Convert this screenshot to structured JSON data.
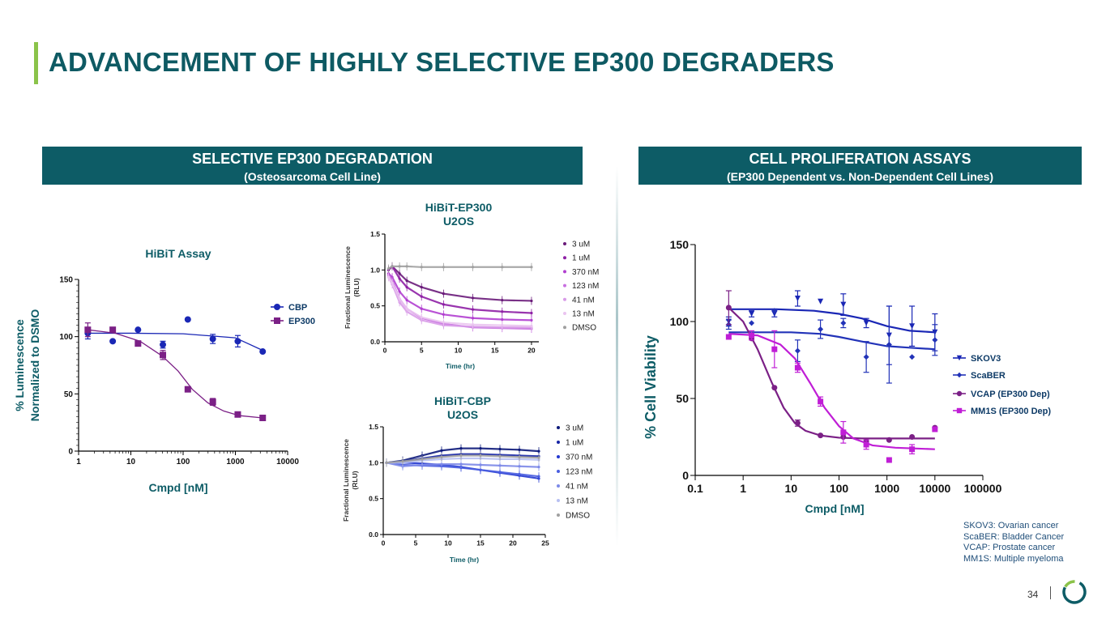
{
  "slide": {
    "title": "ADVANCEMENT OF HIGHLY SELECTIVE EP300 DEGRADERS",
    "page_number": "34"
  },
  "left_panel": {
    "heading": "SELECTIVE EP300 DEGRADATION",
    "subheading": "(Osteosarcoma Cell Line)"
  },
  "right_panel": {
    "heading": "CELL PROLIFERATION ASSAYS",
    "subheading": "(EP300 Dependent  vs. Non-Dependent Cell Lines)"
  },
  "footnotes": [
    "SKOV3: Ovarian cancer",
    "ScaBER: Bladder Cancer",
    "VCAP: Prostate cancer",
    "MM1S: Multiple myeloma"
  ],
  "colors": {
    "teal": "#0d5c66",
    "accent_green": "#8bc34a",
    "cbp_blue": "#1a27b5",
    "ep300_purple": "#7b2086"
  },
  "chart_data": [
    {
      "id": "hibit_assay",
      "type": "scatter",
      "title": "HiBiT Assay",
      "xlabel": "Cmpd [nM]",
      "ylabel": [
        "% Luminescence",
        "Normalized to DSMO"
      ],
      "xscale": "log",
      "xlim": [
        1,
        10000
      ],
      "ylim": [
        0,
        150
      ],
      "xticks": [
        1,
        10,
        100,
        1000,
        10000
      ],
      "xtick_labels": [
        "1",
        "10",
        "100",
        "1000",
        "10000"
      ],
      "yticks": [
        0,
        50,
        100,
        150
      ],
      "ytick_labels": [
        "0",
        "50",
        "100",
        "150"
      ],
      "legend_position": "right",
      "series": [
        {
          "name": "CBP",
          "marker": "circle",
          "color": "#1a27b5",
          "x": [
            1.5,
            4.5,
            13.7,
            41,
            123,
            370,
            1111,
            3333
          ],
          "y": [
            103,
            96,
            106,
            93,
            115,
            98,
            96,
            87
          ],
          "err": [
            5,
            0,
            0,
            3,
            0,
            4,
            5,
            0
          ],
          "fit_x": [
            1.5,
            10,
            100,
            1000,
            3333
          ],
          "fit_y": [
            103,
            103,
            102.5,
            99,
            88
          ]
        },
        {
          "name": "EP300",
          "marker": "square",
          "color": "#7b2086",
          "x": [
            1.5,
            4.5,
            13.7,
            41,
            123,
            370,
            1111,
            3333
          ],
          "y": [
            106,
            106,
            94,
            84,
            54,
            43,
            32,
            29
          ],
          "err": [
            6,
            0,
            0,
            4,
            0,
            3,
            0,
            0
          ],
          "fit_x": [
            1.5,
            5,
            15,
            40,
            80,
            150,
            300,
            600,
            1200,
            3333
          ],
          "fit_y": [
            106,
            103,
            96,
            83,
            70,
            54,
            42,
            35,
            31,
            29
          ]
        }
      ]
    },
    {
      "id": "hibit_ep300_u2os",
      "type": "line",
      "title": [
        "HiBiT-EP300",
        "U2OS"
      ],
      "xlabel": "Time (hr)",
      "ylabel": [
        "Fractional  Luminescence",
        "(RLU)"
      ],
      "xlim": [
        0,
        21
      ],
      "ylim": [
        0,
        1.5
      ],
      "xticks": [
        0,
        5,
        10,
        15,
        20
      ],
      "xtick_labels": [
        "0",
        "5",
        "10",
        "15",
        "20"
      ],
      "yticks": [
        0,
        0.5,
        1.0,
        1.5
      ],
      "ytick_labels": [
        "0.0",
        "0.5",
        "1.0",
        "1.5"
      ],
      "legend_position": "right",
      "series": [
        {
          "name": "3 uM",
          "color": "#6a1b7a",
          "x": [
            0.5,
            1,
            2,
            3,
            5,
            8,
            12,
            16,
            20
          ],
          "y": [
            1.0,
            1.05,
            0.95,
            0.85,
            0.76,
            0.67,
            0.61,
            0.58,
            0.57
          ]
        },
        {
          "name": "1 uM",
          "color": "#8e1fa5",
          "x": [
            0.5,
            1,
            2,
            3,
            5,
            8,
            12,
            16,
            20
          ],
          "y": [
            1.0,
            1.05,
            0.88,
            0.76,
            0.63,
            0.52,
            0.45,
            0.42,
            0.4
          ]
        },
        {
          "name": "370 nM",
          "color": "#b13fd0",
          "x": [
            0.5,
            1,
            2,
            3,
            5,
            8,
            12,
            16,
            20
          ],
          "y": [
            0.95,
            0.9,
            0.7,
            0.58,
            0.46,
            0.38,
            0.33,
            0.31,
            0.3
          ]
        },
        {
          "name": "123 nM",
          "color": "#c870e0",
          "x": [
            0.5,
            1,
            2,
            3,
            5,
            8,
            12,
            16,
            20
          ],
          "y": [
            0.92,
            0.85,
            0.6,
            0.46,
            0.33,
            0.25,
            0.2,
            0.19,
            0.18
          ]
        },
        {
          "name": "41 nM",
          "color": "#d89be8",
          "x": [
            0.5,
            1,
            2,
            3,
            5,
            8,
            12,
            16,
            20
          ],
          "y": [
            0.9,
            0.8,
            0.55,
            0.42,
            0.3,
            0.23,
            0.21,
            0.2,
            0.2
          ]
        },
        {
          "name": "13 nM",
          "color": "#eac4f0",
          "x": [
            0.5,
            1,
            2,
            3,
            5,
            8,
            12,
            16,
            20
          ],
          "y": [
            0.9,
            0.82,
            0.6,
            0.46,
            0.34,
            0.27,
            0.24,
            0.23,
            0.22
          ]
        },
        {
          "name": "DMSO",
          "color": "#a0a0a0",
          "x": [
            0.5,
            1,
            2,
            3,
            5,
            8,
            12,
            16,
            20
          ],
          "y": [
            1.02,
            1.05,
            1.05,
            1.05,
            1.04,
            1.04,
            1.04,
            1.04,
            1.04
          ]
        }
      ]
    },
    {
      "id": "hibit_cbp_u2os",
      "type": "line",
      "title": [
        "HiBiT-CBP",
        "U2OS"
      ],
      "xlabel": "Time (hr)",
      "ylabel": [
        "Fractional  Luminescence",
        "(RLU)"
      ],
      "xlim": [
        0,
        25
      ],
      "ylim": [
        0,
        1.5
      ],
      "xticks": [
        0,
        5,
        10,
        15,
        20,
        25
      ],
      "xtick_labels": [
        "0",
        "5",
        "10",
        "15",
        "20",
        "25"
      ],
      "yticks": [
        0,
        0.5,
        1.0,
        1.5
      ],
      "ytick_labels": [
        "0.0",
        "0.5",
        "1.0",
        "1.5"
      ],
      "legend_position": "right",
      "series": [
        {
          "name": "3 uM",
          "color": "#0d1a7a",
          "x": [
            0.5,
            3,
            6,
            9,
            12,
            15,
            18,
            21,
            24
          ],
          "y": [
            1.0,
            1.03,
            1.1,
            1.17,
            1.2,
            1.2,
            1.19,
            1.18,
            1.16
          ]
        },
        {
          "name": "1 uM",
          "color": "#1625a6",
          "x": [
            0.5,
            3,
            6,
            9,
            12,
            15,
            18,
            21,
            24
          ],
          "y": [
            1.0,
            1.02,
            1.06,
            1.1,
            1.12,
            1.12,
            1.11,
            1.1,
            1.09
          ]
        },
        {
          "name": "370 nM",
          "color": "#2438d0",
          "x": [
            0.5,
            3,
            6,
            9,
            12,
            15,
            18,
            21,
            24
          ],
          "y": [
            1.0,
            1.0,
            0.99,
            0.97,
            0.94,
            0.9,
            0.86,
            0.82,
            0.78
          ]
        },
        {
          "name": "123 nM",
          "color": "#4a5ee0",
          "x": [
            0.5,
            3,
            6,
            9,
            12,
            15,
            18,
            21,
            24
          ],
          "y": [
            1.0,
            0.97,
            0.96,
            0.95,
            0.93,
            0.9,
            0.87,
            0.84,
            0.81
          ]
        },
        {
          "name": "41 nM",
          "color": "#7d8ae8",
          "x": [
            0.5,
            3,
            6,
            9,
            12,
            15,
            18,
            21,
            24
          ],
          "y": [
            1.0,
            0.95,
            0.97,
            0.98,
            0.98,
            0.97,
            0.96,
            0.95,
            0.94
          ]
        },
        {
          "name": "13 nM",
          "color": "#b7c0f2",
          "x": [
            0.5,
            3,
            6,
            9,
            12,
            15,
            18,
            21,
            24
          ],
          "y": [
            1.0,
            1.0,
            1.03,
            1.05,
            1.06,
            1.06,
            1.05,
            1.05,
            1.04
          ]
        },
        {
          "name": "DMSO",
          "color": "#a0a0a0",
          "x": [
            0.5,
            3,
            6,
            9,
            12,
            15,
            18,
            21,
            24
          ],
          "y": [
            1.0,
            1.02,
            1.05,
            1.08,
            1.1,
            1.1,
            1.09,
            1.08,
            1.07
          ]
        }
      ]
    },
    {
      "id": "cell_viability",
      "type": "scatter",
      "xlabel": "Cmpd [nM]",
      "ylabel": "% Cell Viability",
      "xscale": "log",
      "xlim": [
        0.1,
        100000
      ],
      "ylim": [
        0,
        150
      ],
      "xticks": [
        0.1,
        1,
        10,
        100,
        1000,
        10000,
        100000
      ],
      "xtick_labels": [
        "0.1",
        "1",
        "10",
        "100",
        "1000",
        "10000",
        "100000"
      ],
      "yticks": [
        0,
        50,
        100,
        150
      ],
      "ytick_labels": [
        "0",
        "50",
        "100",
        "150"
      ],
      "legend_position": "right",
      "series": [
        {
          "name": "SKOV3",
          "marker": "triangle-down",
          "color": "#1a27b5",
          "x": [
            0.5,
            1.5,
            4.5,
            13.7,
            41,
            123,
            370,
            1111,
            3333,
            10000
          ],
          "y": [
            100,
            105,
            105,
            115,
            113,
            111,
            99,
            91,
            97,
            93
          ],
          "err": [
            3,
            2,
            2,
            5,
            0,
            7,
            3,
            19,
            13,
            12
          ],
          "fit_x": [
            0.5,
            5,
            30,
            100,
            300,
            1000,
            3000,
            10000
          ],
          "fit_y": [
            108,
            108,
            107,
            105,
            102,
            97,
            94,
            93
          ]
        },
        {
          "name": "ScaBER",
          "marker": "diamond",
          "color": "#2233b8",
          "x": [
            0.5,
            1.5,
            4.5,
            13.7,
            41,
            123,
            370,
            1111,
            3333,
            10000
          ],
          "y": [
            98,
            99,
            107,
            81,
            95,
            99,
            77,
            85,
            77,
            88
          ],
          "err": [
            3,
            0,
            0,
            7,
            6,
            3,
            10,
            25,
            0,
            10
          ],
          "fit_x": [
            0.5,
            10,
            40,
            100,
            300,
            1000,
            3000,
            10000
          ],
          "fit_y": [
            93,
            93,
            92,
            90,
            87,
            84,
            83,
            82
          ]
        },
        {
          "name": "VCAP (EP300 Dep)",
          "marker": "circle",
          "color": "#7b2086",
          "x": [
            0.5,
            1.5,
            4.5,
            13.7,
            41,
            123,
            370,
            1111,
            3333,
            10000
          ],
          "y": [
            109,
            89,
            57,
            34,
            26,
            25,
            22,
            23,
            25,
            31
          ],
          "err": [
            11,
            0,
            0,
            2,
            0,
            0,
            0,
            0,
            0,
            0
          ],
          "fit_x": [
            0.5,
            1,
            2,
            4,
            7,
            12,
            20,
            40,
            100,
            300,
            1000,
            10000
          ],
          "fit_y": [
            109,
            100,
            82,
            60,
            44,
            34,
            29,
            26,
            24.5,
            24,
            24,
            24
          ]
        },
        {
          "name": "MM1S (EP300 Dep)",
          "marker": "square",
          "color": "#c01ed6",
          "x": [
            0.5,
            1.5,
            4.5,
            13.7,
            41,
            123,
            370,
            1111,
            3333,
            10000
          ],
          "y": [
            90,
            91,
            82,
            70,
            48,
            28,
            20,
            10,
            17,
            30
          ],
          "err": [
            0,
            3,
            12,
            3,
            3,
            7,
            3,
            0,
            3,
            0
          ],
          "fit_x": [
            0.5,
            2,
            6,
            12,
            25,
            50,
            100,
            200,
            500,
            1500,
            10000
          ],
          "fit_y": [
            92,
            91,
            85,
            76,
            60,
            44,
            32,
            24,
            19.5,
            18,
            17
          ]
        }
      ]
    }
  ]
}
